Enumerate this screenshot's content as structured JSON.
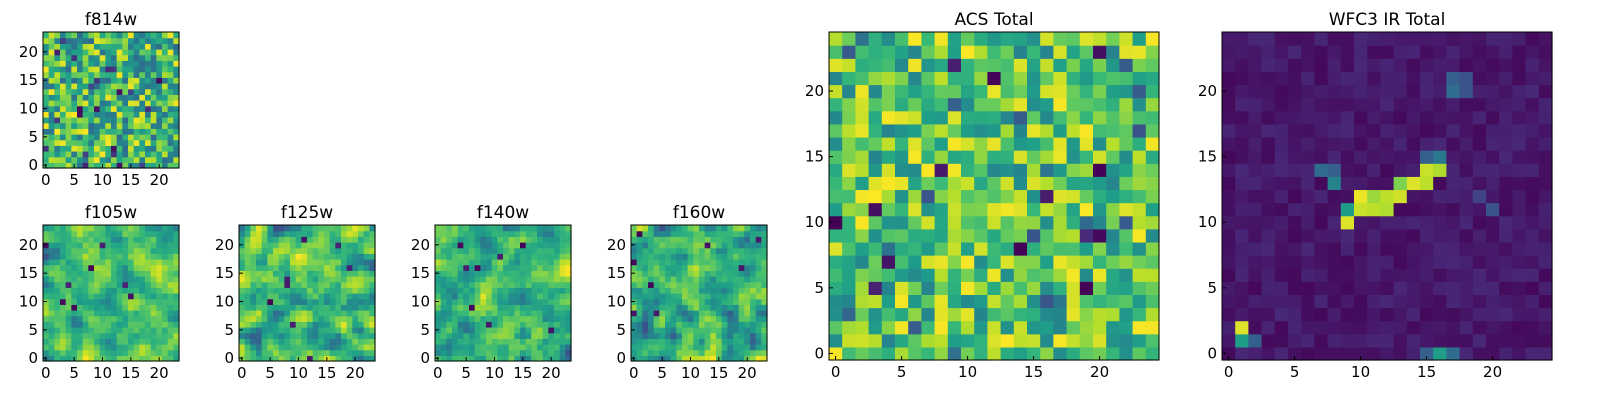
{
  "chart_data": [
    {
      "type": "heatmap",
      "title": "f814w",
      "xlabel": "",
      "ylabel": "",
      "shape": [
        24,
        24
      ],
      "xlim": [
        0,
        24
      ],
      "ylim": [
        0,
        24
      ],
      "xticks": [
        0,
        5,
        10,
        15,
        20
      ],
      "yticks": [
        0,
        5,
        10,
        15,
        20
      ],
      "value_range": [
        0,
        1
      ],
      "colormap": "viridis",
      "pattern": "uniform-noise",
      "seed": 11,
      "bright_pixels": []
    },
    {
      "type": "heatmap",
      "title": "f105w",
      "xlabel": "",
      "ylabel": "",
      "shape": [
        24,
        24
      ],
      "xlim": [
        0,
        24
      ],
      "ylim": [
        0,
        24
      ],
      "xticks": [
        0,
        5,
        10,
        15,
        20
      ],
      "yticks": [
        0,
        5,
        10,
        15,
        20
      ],
      "value_range": [
        0,
        1
      ],
      "colormap": "viridis",
      "pattern": "smoothed-noise",
      "seed": 23,
      "bright_pixels": []
    },
    {
      "type": "heatmap",
      "title": "f125w",
      "xlabel": "",
      "ylabel": "",
      "shape": [
        24,
        24
      ],
      "xlim": [
        0,
        24
      ],
      "ylim": [
        0,
        24
      ],
      "xticks": [
        0,
        5,
        10,
        15,
        20
      ],
      "yticks": [
        0,
        5,
        10,
        15,
        20
      ],
      "value_range": [
        0,
        1
      ],
      "colormap": "viridis",
      "pattern": "smoothed-noise",
      "seed": 37,
      "bright_pixels": []
    },
    {
      "type": "heatmap",
      "title": "f140w",
      "xlabel": "",
      "ylabel": "",
      "shape": [
        24,
        24
      ],
      "xlim": [
        0,
        24
      ],
      "ylim": [
        0,
        24
      ],
      "xticks": [
        0,
        5,
        10,
        15,
        20
      ],
      "yticks": [
        0,
        5,
        10,
        15,
        20
      ],
      "value_range": [
        0,
        1
      ],
      "colormap": "viridis",
      "pattern": "smoothed-noise",
      "seed": 41,
      "bright_pixels": []
    },
    {
      "type": "heatmap",
      "title": "f160w",
      "xlabel": "",
      "ylabel": "",
      "shape": [
        24,
        24
      ],
      "xlim": [
        0,
        24
      ],
      "ylim": [
        0,
        24
      ],
      "xticks": [
        0,
        5,
        10,
        15,
        20
      ],
      "yticks": [
        0,
        5,
        10,
        15,
        20
      ],
      "value_range": [
        0,
        1
      ],
      "colormap": "viridis",
      "pattern": "smoothed-noise",
      "seed": 53,
      "bright_pixels": []
    },
    {
      "type": "heatmap",
      "title": "ACS Total",
      "xlabel": "",
      "ylabel": "",
      "shape": [
        25,
        25
      ],
      "xlim": [
        0,
        25
      ],
      "ylim": [
        0,
        25
      ],
      "xticks": [
        0,
        5,
        10,
        15,
        20
      ],
      "yticks": [
        0,
        5,
        10,
        15,
        20
      ],
      "value_range": [
        0,
        1
      ],
      "colormap": "viridis",
      "pattern": "blocky-noise",
      "seed": 67,
      "bright_pixels": []
    },
    {
      "type": "heatmap",
      "title": "WFC3 IR Total",
      "xlabel": "",
      "ylabel": "",
      "shape": [
        25,
        25
      ],
      "xlim": [
        0,
        25
      ],
      "ylim": [
        0,
        25
      ],
      "xticks": [
        0,
        5,
        10,
        15,
        20
      ],
      "yticks": [
        0,
        5,
        10,
        15,
        20
      ],
      "value_range": [
        0,
        1
      ],
      "colormap": "viridis",
      "pattern": "dark-background",
      "seed": 79,
      "bright_pixels": [
        [
          9,
          10,
          0.95
        ],
        [
          9,
          11,
          0.55
        ],
        [
          10,
          11,
          0.92
        ],
        [
          10,
          12,
          0.97
        ],
        [
          11,
          11,
          0.9
        ],
        [
          11,
          12,
          0.85
        ],
        [
          12,
          11,
          0.88
        ],
        [
          12,
          12,
          0.9
        ],
        [
          13,
          12,
          0.93
        ],
        [
          13,
          13,
          0.8
        ],
        [
          14,
          13,
          0.95
        ],
        [
          15,
          13,
          0.9
        ],
        [
          15,
          14,
          0.92
        ],
        [
          16,
          14,
          0.88
        ],
        [
          16,
          15,
          0.4
        ],
        [
          15,
          15,
          0.3
        ],
        [
          7,
          14,
          0.35
        ],
        [
          8,
          13,
          0.45
        ],
        [
          8,
          14,
          0.3
        ],
        [
          17,
          20,
          0.35
        ],
        [
          17,
          21,
          0.3
        ],
        [
          18,
          20,
          0.25
        ],
        [
          18,
          21,
          0.25
        ],
        [
          1,
          1,
          0.55
        ],
        [
          1,
          2,
          0.95
        ],
        [
          2,
          1,
          0.3
        ],
        [
          16,
          0,
          0.55
        ],
        [
          17,
          0,
          0.35
        ],
        [
          15,
          0,
          0.3
        ],
        [
          20,
          11,
          0.25
        ],
        [
          19,
          12,
          0.2
        ]
      ]
    }
  ]
}
